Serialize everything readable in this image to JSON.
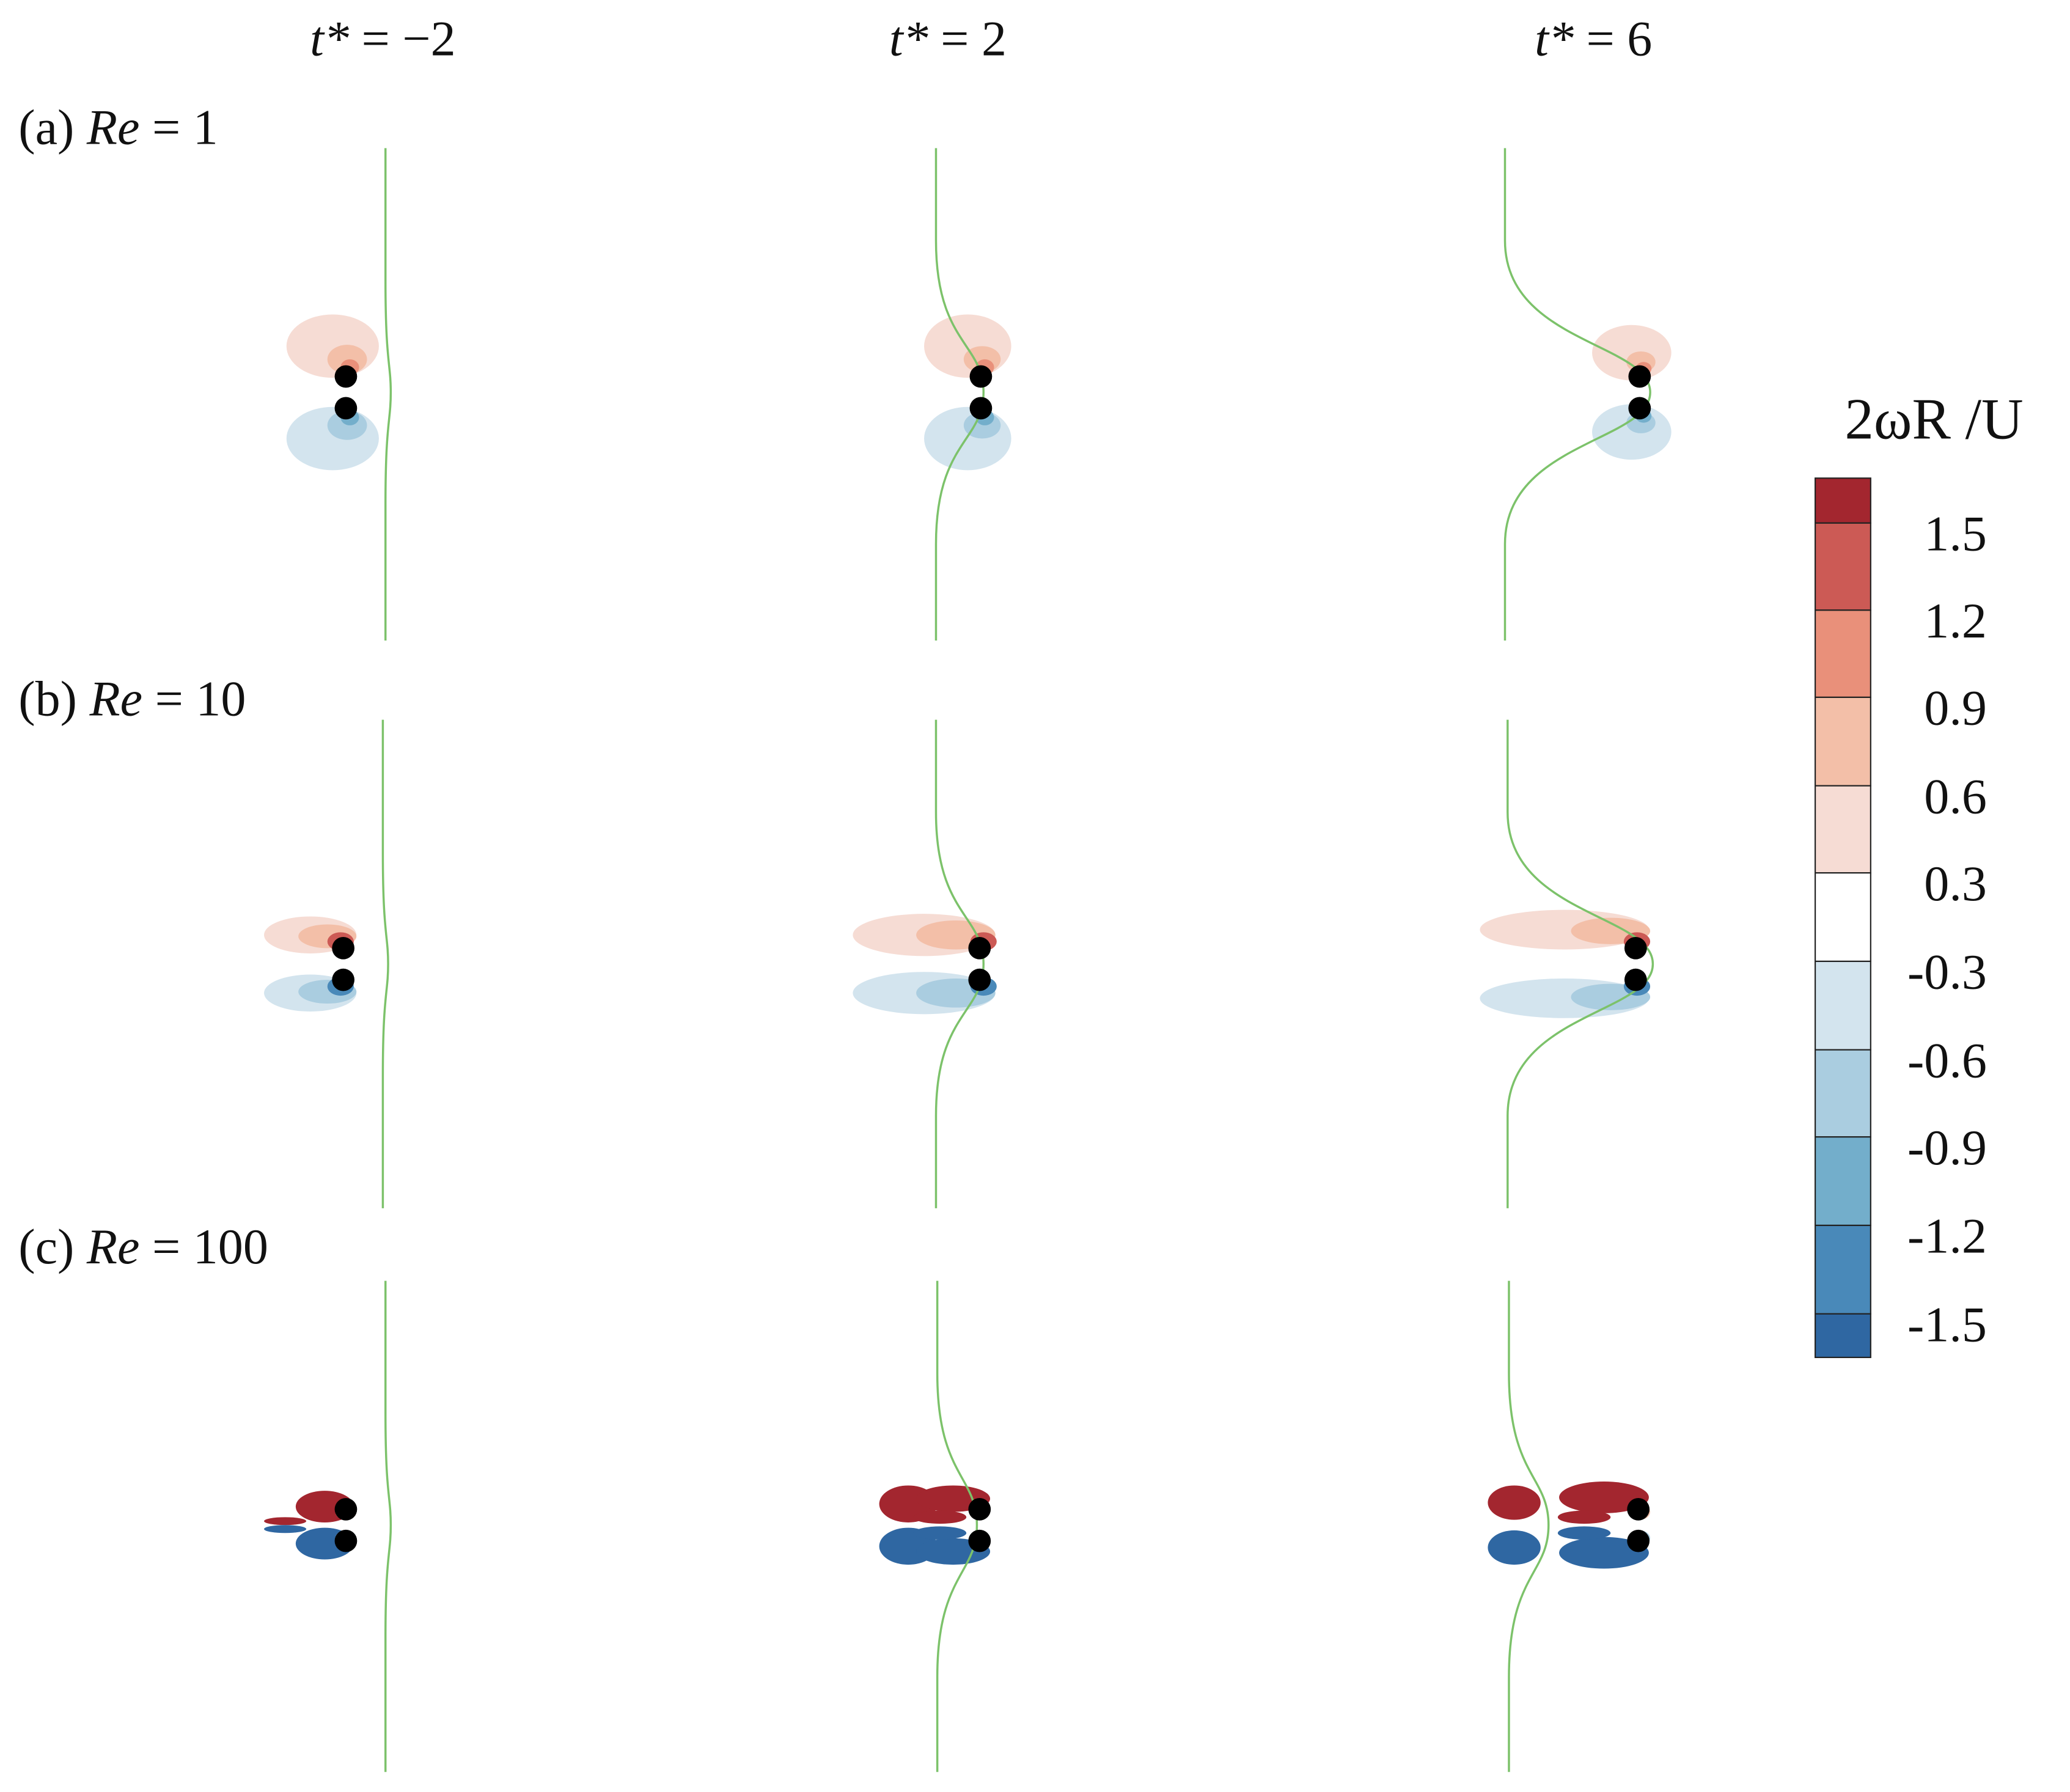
{
  "columns": [
    {
      "symbol": "t*",
      "rest": " = −2"
    },
    {
      "symbol": "t*",
      "rest": " = 2"
    },
    {
      "symbol": "t*",
      "rest": " = 6"
    }
  ],
  "rows": [
    {
      "label": "(a) ",
      "symbol": "Re",
      "rest": " = 1"
    },
    {
      "label": "(b) ",
      "symbol": "Re",
      "rest": " = 10"
    },
    {
      "label": "(c) ",
      "symbol": "Re",
      "rest": " = 100"
    }
  ],
  "colorbar": {
    "title": "2ωR /U",
    "colors": [
      "#a3262f",
      "#cc5a55",
      "#e9907a",
      "#f3bfa8",
      "#f6dcd4",
      "#ffffff",
      "#d3e4ee",
      "#aacde0",
      "#73aecb",
      "#4989b9",
      "#2f67a2"
    ],
    "labels": [
      "1.5",
      "1.2",
      "0.9",
      "0.6",
      "0.3",
      "-0.3",
      "-0.6",
      "-0.9",
      "-1.2",
      "-1.5"
    ]
  }
}
